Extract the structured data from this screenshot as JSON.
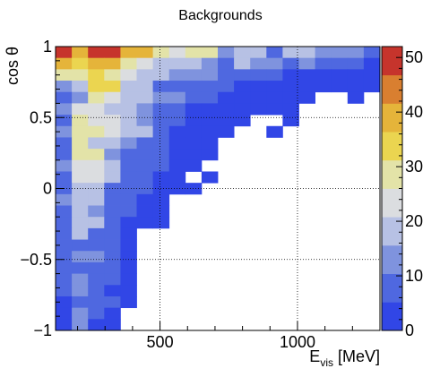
{
  "chart_data": {
    "type": "heatmap",
    "title": "Backgrounds",
    "xlabel_main": "E",
    "xlabel_sub": "vis",
    "xlabel_unit": " [MeV]",
    "ylabel": "cos θ",
    "xlim": [
      120,
      1300
    ],
    "ylim": [
      -1,
      1
    ],
    "x_ticks": [
      {
        "value": 500,
        "label": "500"
      },
      {
        "value": 1000,
        "label": "1000"
      }
    ],
    "y_ticks": [
      {
        "value": 1,
        "label": "1"
      },
      {
        "value": 0.5,
        "label": "0.5"
      },
      {
        "value": 0,
        "label": "0"
      },
      {
        "value": -0.5,
        "label": "−0.5"
      },
      {
        "value": -1,
        "label": "−1"
      }
    ],
    "grid": true,
    "x_bins": {
      "start": 120,
      "width": 59,
      "count": 20
    },
    "y_bins": {
      "start": -1,
      "width": 0.08,
      "count": 25
    },
    "z_range": [
      0,
      52
    ],
    "colorbar_ticks": [
      {
        "value": 0,
        "label": "0"
      },
      {
        "value": 10,
        "label": "10"
      },
      {
        "value": 20,
        "label": "20"
      },
      {
        "value": 30,
        "label": "30"
      },
      {
        "value": 40,
        "label": "40"
      },
      {
        "value": 50,
        "label": "50"
      }
    ],
    "palette": [
      "#3146e6",
      "#4f68e0",
      "#7f93de",
      "#b7c1e4",
      "#dbdde0",
      "#e3e3a8",
      "#ebd550",
      "#e5b43a",
      "#d97f30",
      "#c6342c"
    ],
    "rows_top_to_bottom": [
      [
        52,
        40,
        50,
        52,
        38,
        38,
        30,
        25,
        30,
        28,
        12,
        20,
        20,
        10,
        20,
        18,
        15,
        14,
        12,
        10
      ],
      [
        38,
        34,
        40,
        38,
        26,
        25,
        20,
        17,
        20,
        14,
        10,
        16,
        14,
        12,
        10,
        12,
        10,
        6,
        6,
        5
      ],
      [
        28,
        30,
        36,
        30,
        22,
        20,
        16,
        14,
        12,
        12,
        8,
        6,
        6,
        6,
        5,
        5,
        4,
        3,
        3,
        3
      ],
      [
        12,
        16,
        34,
        34,
        18,
        20,
        10,
        10,
        10,
        8,
        6,
        5,
        4,
        4,
        3,
        3,
        2,
        2,
        2,
        2
      ],
      [
        10,
        12,
        26,
        24,
        18,
        16,
        14,
        12,
        8,
        6,
        5,
        4,
        3,
        2,
        2,
        2,
        0,
        0,
        2,
        0
      ],
      [
        12,
        24,
        22,
        20,
        16,
        14,
        8,
        6,
        4,
        4,
        3,
        2,
        2,
        2,
        2,
        0,
        0,
        0,
        0,
        0
      ],
      [
        10,
        30,
        24,
        24,
        18,
        14,
        10,
        8,
        4,
        2,
        2,
        2,
        0,
        0,
        2,
        0,
        0,
        0,
        0,
        0
      ],
      [
        12,
        30,
        30,
        22,
        18,
        16,
        10,
        4,
        3,
        2,
        2,
        0,
        0,
        2,
        0,
        0,
        0,
        0,
        0,
        0
      ],
      [
        10,
        26,
        20,
        16,
        12,
        10,
        6,
        4,
        3,
        2,
        0,
        0,
        0,
        0,
        0,
        0,
        0,
        0,
        0,
        0
      ],
      [
        10,
        26,
        26,
        14,
        10,
        8,
        6,
        4,
        2,
        2,
        0,
        0,
        0,
        0,
        0,
        0,
        0,
        0,
        0,
        0
      ],
      [
        12,
        24,
        22,
        20,
        10,
        8,
        6,
        3,
        2,
        0,
        0,
        0,
        0,
        0,
        0,
        0,
        0,
        0,
        0,
        0
      ],
      [
        10,
        22,
        24,
        16,
        10,
        8,
        4,
        2,
        0,
        2,
        0,
        0,
        0,
        0,
        0,
        0,
        0,
        0,
        0,
        0
      ],
      [
        10,
        20,
        18,
        10,
        8,
        6,
        4,
        2,
        2,
        0,
        0,
        0,
        0,
        0,
        0,
        0,
        0,
        0,
        0,
        0
      ],
      [
        12,
        20,
        16,
        8,
        6,
        4,
        2,
        0,
        0,
        0,
        0,
        0,
        0,
        0,
        0,
        0,
        0,
        0,
        0,
        0
      ],
      [
        10,
        16,
        14,
        10,
        6,
        2,
        2,
        0,
        0,
        0,
        0,
        0,
        0,
        0,
        0,
        0,
        0,
        0,
        0,
        0
      ],
      [
        8,
        18,
        16,
        10,
        4,
        2,
        2,
        0,
        0,
        0,
        0,
        0,
        0,
        0,
        0,
        0,
        0,
        0,
        0,
        0
      ],
      [
        8,
        16,
        10,
        8,
        4,
        0,
        0,
        0,
        0,
        0,
        0,
        0,
        0,
        0,
        0,
        0,
        0,
        0,
        0,
        0
      ],
      [
        6,
        10,
        10,
        6,
        4,
        0,
        0,
        0,
        0,
        0,
        0,
        0,
        0,
        0,
        0,
        0,
        0,
        0,
        0,
        0
      ],
      [
        10,
        12,
        12,
        6,
        4,
        0,
        0,
        0,
        0,
        0,
        0,
        0,
        0,
        0,
        0,
        0,
        0,
        0,
        0,
        0
      ],
      [
        6,
        10,
        10,
        6,
        2,
        0,
        0,
        0,
        0,
        0,
        0,
        0,
        0,
        0,
        0,
        0,
        0,
        0,
        0,
        0
      ],
      [
        6,
        14,
        10,
        6,
        2,
        0,
        0,
        0,
        0,
        0,
        0,
        0,
        0,
        0,
        0,
        0,
        0,
        0,
        0,
        0
      ],
      [
        8,
        14,
        10,
        4,
        2,
        0,
        0,
        0,
        0,
        0,
        0,
        0,
        0,
        0,
        0,
        0,
        0,
        0,
        0,
        0
      ],
      [
        4,
        8,
        6,
        6,
        2,
        0,
        0,
        0,
        0,
        0,
        0,
        0,
        0,
        0,
        0,
        0,
        0,
        0,
        0,
        0
      ],
      [
        4,
        14,
        6,
        4,
        0,
        0,
        0,
        0,
        0,
        0,
        0,
        0,
        0,
        0,
        0,
        0,
        0,
        0,
        0,
        0
      ],
      [
        4,
        14,
        4,
        2,
        0,
        0,
        0,
        0,
        0,
        0,
        0,
        0,
        0,
        0,
        0,
        0,
        0,
        0,
        0,
        0
      ]
    ]
  }
}
